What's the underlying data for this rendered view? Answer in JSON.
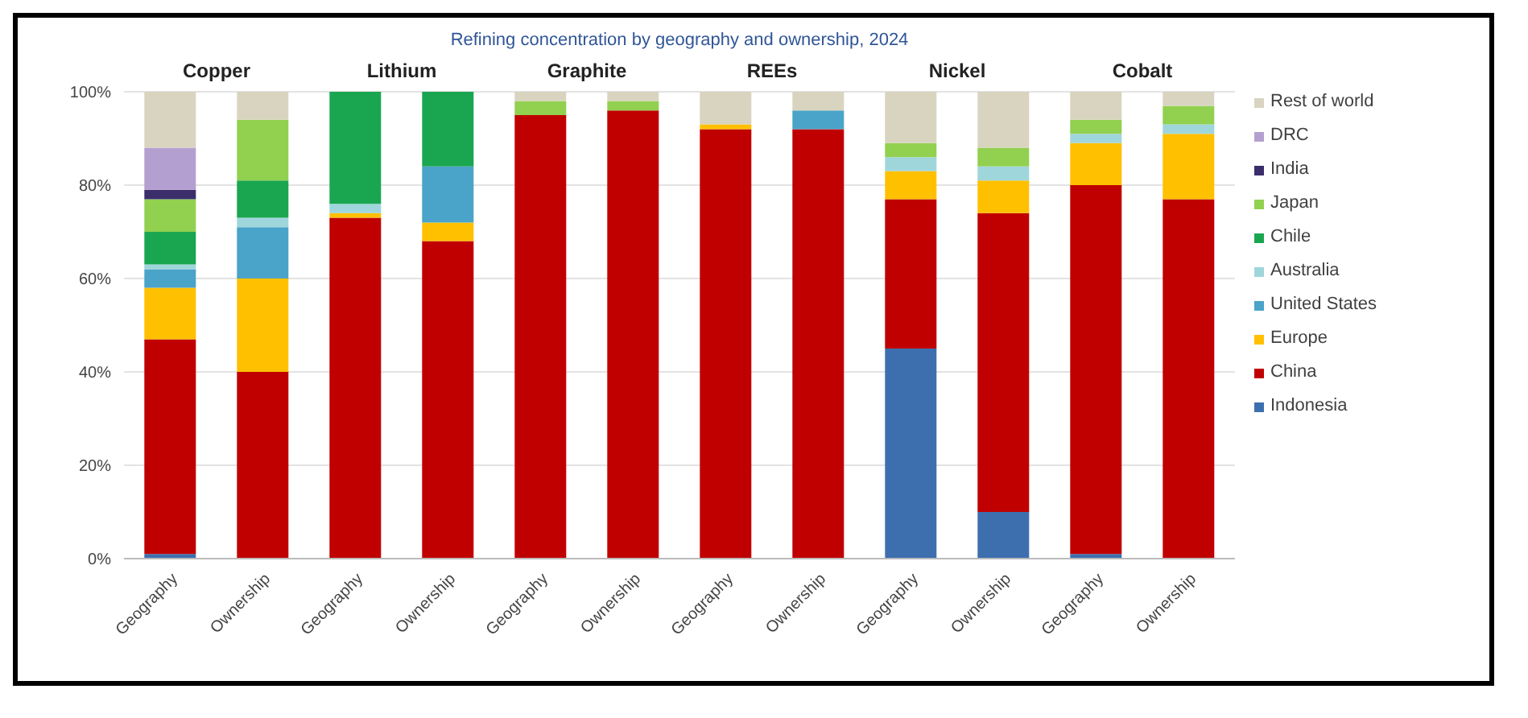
{
  "chart_data": {
    "type": "bar",
    "stacked": true,
    "title": "Refining concentration by geography and ownership, 2024",
    "categories": [
      "Geography",
      "Ownership",
      "Geography",
      "Ownership",
      "Geography",
      "Ownership",
      "Geography",
      "Ownership",
      "Geography",
      "Ownership",
      "Geography",
      "Ownership"
    ],
    "annotations": [
      "Copper",
      "Lithium",
      "Graphite",
      "REEs",
      "Nickel",
      "Cobalt"
    ],
    "ylim": [
      0,
      100
    ],
    "yticks": [
      {
        "value": 0,
        "label": "0%"
      },
      {
        "value": 20,
        "label": "20%"
      },
      {
        "value": 40,
        "label": "40%"
      },
      {
        "value": 60,
        "label": "60%"
      },
      {
        "value": 80,
        "label": "80%"
      },
      {
        "value": 100,
        "label": "100%"
      }
    ],
    "grid": "y",
    "legend": "right",
    "series": [
      {
        "name": "Indonesia",
        "color": "#3d6faf",
        "values": [
          1,
          null,
          null,
          null,
          null,
          null,
          null,
          null,
          45,
          10,
          1,
          null
        ]
      },
      {
        "name": "China",
        "color": "#c00000",
        "values": [
          46,
          40,
          73,
          68,
          95,
          96,
          92,
          92,
          32,
          64,
          79,
          77
        ]
      },
      {
        "name": "Europe",
        "color": "#ffc000",
        "values": [
          11,
          20,
          1,
          4,
          null,
          null,
          1,
          null,
          6,
          7,
          9,
          14
        ]
      },
      {
        "name": "United States",
        "color": "#4aa3c8",
        "values": [
          4,
          11,
          null,
          12,
          null,
          null,
          null,
          4,
          null,
          null,
          null,
          null
        ]
      },
      {
        "name": "Australia",
        "color": "#9fd6dc",
        "values": [
          1,
          2,
          2,
          null,
          null,
          null,
          null,
          null,
          3,
          3,
          2,
          2
        ]
      },
      {
        "name": "Chile",
        "color": "#1aa650",
        "values": [
          7,
          8,
          24,
          16,
          null,
          null,
          null,
          null,
          null,
          null,
          null,
          null
        ]
      },
      {
        "name": "Japan",
        "color": "#92d050",
        "values": [
          7,
          13,
          null,
          null,
          3,
          2,
          null,
          null,
          3,
          4,
          3,
          4
        ]
      },
      {
        "name": "India",
        "color": "#3b2e6b",
        "values": [
          2,
          null,
          null,
          null,
          null,
          null,
          null,
          null,
          null,
          null,
          null,
          null
        ]
      },
      {
        "name": "DRC",
        "color": "#b4a0d0",
        "values": [
          9,
          null,
          null,
          null,
          null,
          null,
          null,
          null,
          null,
          null,
          null,
          null
        ]
      },
      {
        "name": "Rest of world",
        "color": "#d9d4c0",
        "values": [
          12,
          6,
          null,
          null,
          2,
          2,
          7,
          4,
          11,
          12,
          6,
          3
        ]
      }
    ]
  }
}
